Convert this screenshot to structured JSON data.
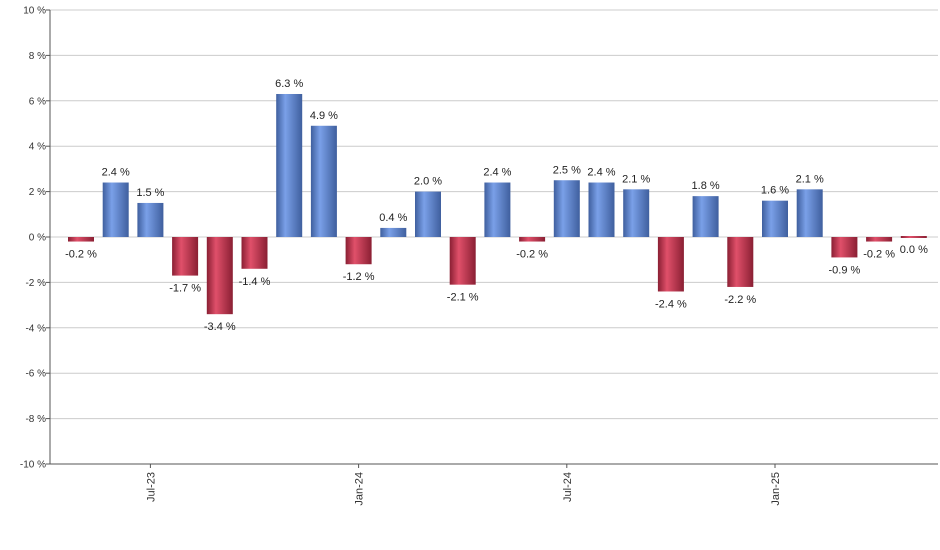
{
  "chart_data": {
    "type": "bar",
    "title": "",
    "xlabel": "",
    "ylabel": "",
    "ylim": [
      -10,
      10
    ],
    "y_ticks": [
      10,
      8,
      6,
      4,
      2,
      0,
      -2,
      -4,
      -6,
      -8,
      -10
    ],
    "y_tick_suffix": " %",
    "grid": true,
    "values": [
      -0.2,
      2.4,
      1.5,
      -1.7,
      -3.4,
      -1.4,
      6.3,
      4.9,
      -1.2,
      0.4,
      2.0,
      -2.1,
      2.4,
      -0.2,
      2.5,
      2.4,
      2.1,
      -2.4,
      1.8,
      -2.2,
      1.6,
      2.1,
      -0.9,
      -0.2,
      0.0
    ],
    "data_labels": [
      "-0.2 %",
      "2.4 %",
      "1.5 %",
      "-1.7 %",
      "-3.4 %",
      "-1.4 %",
      "6.3 %",
      "4.9 %",
      "-1.2 %",
      "0.4 %",
      "2.0 %",
      "-2.1 %",
      "2.4 %",
      "-0.2 %",
      "2.5 %",
      "2.4 %",
      "2.1 %",
      "-2.4 %",
      "1.8 %",
      "-2.2 %",
      "1.6 %",
      "2.1 %",
      "-0.9 %",
      "-0.2 %",
      "0.0 %"
    ],
    "x_tick_labels": [
      {
        "index": 2,
        "label": "Jul-23"
      },
      {
        "index": 8,
        "label": "Jan-24"
      },
      {
        "index": 14,
        "label": "Jul-24"
      },
      {
        "index": 20,
        "label": "Jan-25"
      }
    ],
    "colors": {
      "positive": "#7aa0e8",
      "positive_dark": "#3f5f9e",
      "negative": "#e0506a",
      "negative_dark": "#8a1f33"
    }
  }
}
